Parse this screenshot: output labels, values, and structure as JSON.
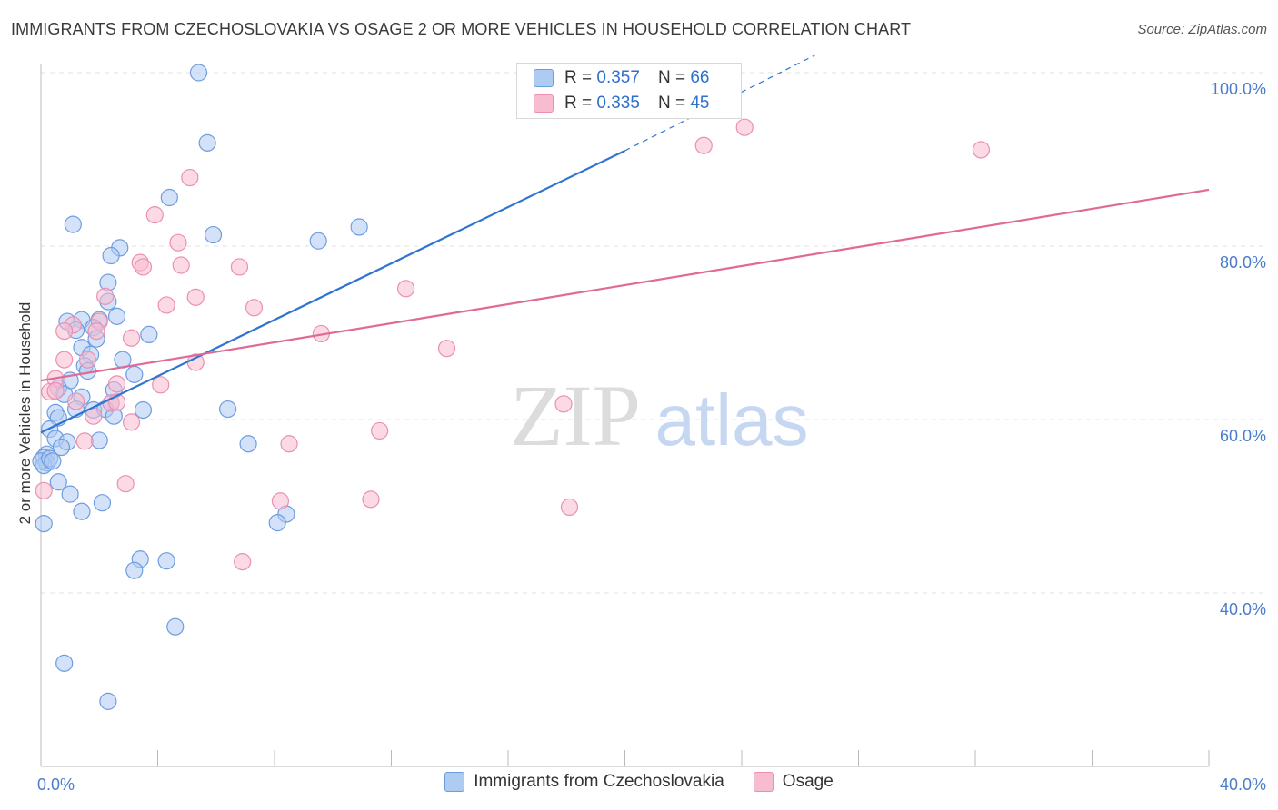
{
  "title": "IMMIGRANTS FROM CZECHOSLOVAKIA VS OSAGE 2 OR MORE VEHICLES IN HOUSEHOLD CORRELATION CHART",
  "source": "Source: ZipAtlas.com",
  "watermark": {
    "zip": "ZIP",
    "atlas": "atlas"
  },
  "legend": {
    "rows": [
      {
        "r_label": "R =",
        "r_value": "0.357",
        "n_label": "N =",
        "n_value": "66"
      },
      {
        "r_label": "R =",
        "r_value": "0.335",
        "n_label": "N =",
        "n_value": "45"
      }
    ]
  },
  "bottom_legend": [
    "Immigrants from Czechoslovakia",
    "Osage"
  ],
  "colors": {
    "blue_fill": "#aecbf2",
    "blue_stroke": "#6d9de0",
    "blue_line": "#2f74d0",
    "pink_fill": "#f7bcd0",
    "pink_stroke": "#ec8fb0",
    "pink_line": "#e06a95",
    "grid": "#e2e2e2",
    "tick_text": "#4a7cc9"
  },
  "chart_data": {
    "type": "scatter",
    "title": "IMMIGRANTS FROM CZECHOSLOVAKIA VS OSAGE 2 OR MORE VEHICLES IN HOUSEHOLD CORRELATION CHART",
    "xlabel": "",
    "ylabel": "2 or more Vehicles in Household",
    "xlim": [
      0,
      40
    ],
    "ylim": [
      22,
      102
    ],
    "x_ticks": [
      0,
      40
    ],
    "x_tick_labels": [
      "0.0%",
      "40.0%"
    ],
    "y_ticks": [
      40,
      60,
      80,
      100
    ],
    "y_tick_labels": [
      "40.0%",
      "60.0%",
      "80.0%",
      "100.0%"
    ],
    "grid": true,
    "legend_position": "top-center",
    "series": [
      {
        "name": "Immigrants from Czechoslovakia",
        "r": 0.357,
        "n": 66,
        "trend": {
          "x": [
            0,
            20,
            26.5
          ],
          "y": [
            58.5,
            91.0,
            102
          ]
        },
        "trend_solid_until_x": 20,
        "points": [
          [
            5.4,
            100.0
          ],
          [
            5.7,
            91.9
          ],
          [
            4.4,
            85.6
          ],
          [
            1.1,
            82.5
          ],
          [
            5.9,
            81.3
          ],
          [
            9.5,
            80.6
          ],
          [
            10.9,
            82.2
          ],
          [
            2.7,
            79.8
          ],
          [
            2.4,
            78.9
          ],
          [
            2.3,
            75.8
          ],
          [
            2.3,
            73.6
          ],
          [
            2.6,
            71.9
          ],
          [
            0.9,
            71.3
          ],
          [
            1.4,
            71.5
          ],
          [
            2.0,
            71.5
          ],
          [
            1.2,
            70.3
          ],
          [
            1.8,
            70.6
          ],
          [
            3.7,
            69.8
          ],
          [
            1.9,
            69.3
          ],
          [
            1.4,
            68.3
          ],
          [
            1.7,
            67.5
          ],
          [
            2.8,
            66.9
          ],
          [
            1.5,
            66.2
          ],
          [
            1.6,
            65.6
          ],
          [
            3.2,
            65.2
          ],
          [
            1.0,
            64.5
          ],
          [
            0.6,
            63.6
          ],
          [
            0.8,
            62.9
          ],
          [
            2.5,
            63.4
          ],
          [
            1.4,
            62.6
          ],
          [
            2.4,
            61.9
          ],
          [
            1.2,
            61.2
          ],
          [
            1.8,
            61.1
          ],
          [
            2.2,
            61.2
          ],
          [
            3.5,
            61.1
          ],
          [
            2.5,
            60.4
          ],
          [
            0.5,
            60.8
          ],
          [
            0.6,
            60.2
          ],
          [
            6.4,
            61.2
          ],
          [
            0.3,
            58.9
          ],
          [
            0.5,
            57.8
          ],
          [
            0.9,
            57.4
          ],
          [
            2.0,
            57.6
          ],
          [
            0.7,
            56.8
          ],
          [
            0.2,
            56.0
          ],
          [
            0.1,
            55.6
          ],
          [
            0.2,
            55.0
          ],
          [
            0.1,
            54.7
          ],
          [
            7.1,
            57.2
          ],
          [
            0.6,
            52.8
          ],
          [
            1.0,
            51.4
          ],
          [
            2.1,
            50.4
          ],
          [
            1.4,
            49.4
          ],
          [
            8.4,
            49.1
          ],
          [
            8.1,
            48.1
          ],
          [
            0.1,
            48.0
          ],
          [
            4.3,
            43.7
          ],
          [
            3.4,
            43.9
          ],
          [
            3.2,
            42.6
          ],
          [
            4.6,
            36.1
          ],
          [
            0.8,
            31.9
          ],
          [
            2.3,
            27.5
          ],
          [
            18.1,
            95.8
          ],
          [
            0.0,
            55.2
          ],
          [
            0.3,
            55.5
          ],
          [
            0.4,
            55.2
          ]
        ]
      },
      {
        "name": "Osage",
        "r": 0.335,
        "n": 45,
        "trend": {
          "x": [
            0,
            40
          ],
          "y": [
            64.5,
            86.5
          ]
        },
        "trend_solid_until_x": 40,
        "points": [
          [
            24.1,
            93.7
          ],
          [
            22.7,
            91.6
          ],
          [
            32.2,
            91.1
          ],
          [
            5.1,
            87.9
          ],
          [
            3.9,
            83.6
          ],
          [
            4.7,
            80.4
          ],
          [
            3.4,
            78.1
          ],
          [
            3.5,
            77.6
          ],
          [
            4.8,
            77.8
          ],
          [
            6.8,
            77.6
          ],
          [
            12.5,
            75.1
          ],
          [
            5.3,
            74.1
          ],
          [
            2.2,
            74.2
          ],
          [
            4.3,
            73.2
          ],
          [
            7.3,
            72.9
          ],
          [
            2.0,
            71.3
          ],
          [
            1.1,
            70.9
          ],
          [
            0.8,
            70.2
          ],
          [
            1.9,
            70.2
          ],
          [
            9.6,
            69.9
          ],
          [
            3.1,
            69.4
          ],
          [
            13.9,
            68.2
          ],
          [
            0.8,
            66.9
          ],
          [
            1.6,
            66.9
          ],
          [
            5.3,
            66.6
          ],
          [
            0.5,
            64.7
          ],
          [
            4.1,
            64.0
          ],
          [
            2.6,
            64.1
          ],
          [
            0.3,
            63.2
          ],
          [
            0.5,
            63.3
          ],
          [
            1.2,
            62.1
          ],
          [
            2.4,
            61.9
          ],
          [
            2.6,
            62.0
          ],
          [
            17.9,
            61.8
          ],
          [
            1.8,
            60.4
          ],
          [
            3.1,
            59.7
          ],
          [
            11.6,
            58.7
          ],
          [
            1.5,
            57.5
          ],
          [
            8.5,
            57.2
          ],
          [
            2.9,
            52.6
          ],
          [
            0.1,
            51.8
          ],
          [
            8.2,
            50.6
          ],
          [
            11.3,
            50.8
          ],
          [
            18.1,
            49.9
          ],
          [
            6.9,
            43.6
          ]
        ]
      }
    ]
  }
}
